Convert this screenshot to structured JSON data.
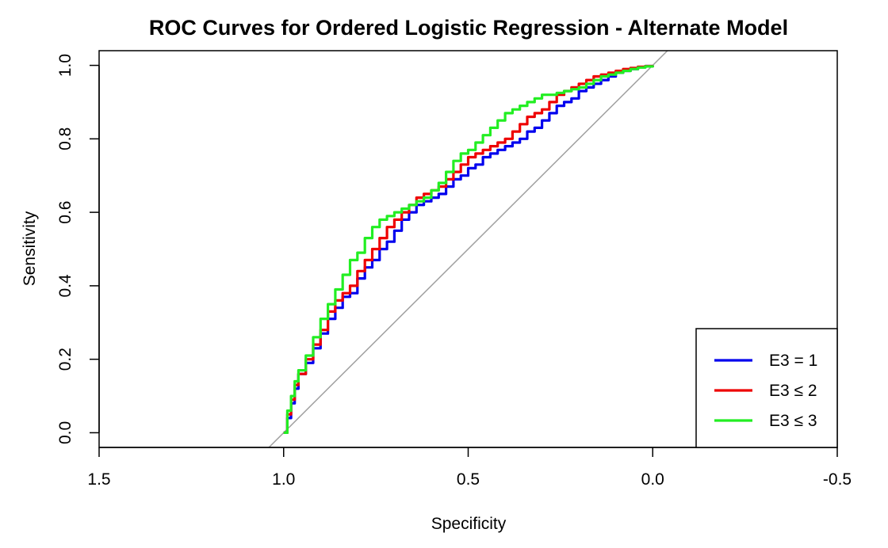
{
  "chart_data": {
    "type": "line",
    "title": "ROC Curves for Ordered Logistic Regression - Alternate Model",
    "xlabel": "Specificity",
    "ylabel": "Sensitivity",
    "xlim": [
      1.5,
      -0.5
    ],
    "ylim": [
      0,
      1
    ],
    "x_reversed": true,
    "x_ticks": [
      1.5,
      1.0,
      0.5,
      0.0,
      -0.5
    ],
    "x_tick_labels": [
      "1.5",
      "1.0",
      "0.5",
      "0.0",
      "-0.5"
    ],
    "y_ticks": [
      0.0,
      0.2,
      0.4,
      0.6,
      0.8,
      1.0
    ],
    "y_tick_labels": [
      "0.0",
      "0.2",
      "0.4",
      "0.6",
      "0.8",
      "1.0"
    ],
    "grid": false,
    "legend_position": "bottom-right",
    "reference_line": {
      "color": "#a0a0a0",
      "description": "diagonal sensitivity = 1 - specificity"
    },
    "series": [
      {
        "name": "E3 = 1",
        "color": "#0000ee",
        "points": [
          [
            1.0,
            0.0
          ],
          [
            0.99,
            0.04
          ],
          [
            0.98,
            0.08
          ],
          [
            0.97,
            0.12
          ],
          [
            0.96,
            0.16
          ],
          [
            0.94,
            0.19
          ],
          [
            0.92,
            0.23
          ],
          [
            0.9,
            0.27
          ],
          [
            0.88,
            0.31
          ],
          [
            0.86,
            0.34
          ],
          [
            0.84,
            0.37
          ],
          [
            0.82,
            0.38
          ],
          [
            0.8,
            0.42
          ],
          [
            0.78,
            0.45
          ],
          [
            0.76,
            0.47
          ],
          [
            0.74,
            0.5
          ],
          [
            0.72,
            0.52
          ],
          [
            0.7,
            0.55
          ],
          [
            0.68,
            0.58
          ],
          [
            0.66,
            0.6
          ],
          [
            0.64,
            0.62
          ],
          [
            0.62,
            0.63
          ],
          [
            0.6,
            0.64
          ],
          [
            0.58,
            0.65
          ],
          [
            0.56,
            0.67
          ],
          [
            0.54,
            0.69
          ],
          [
            0.52,
            0.7
          ],
          [
            0.5,
            0.72
          ],
          [
            0.48,
            0.73
          ],
          [
            0.46,
            0.75
          ],
          [
            0.44,
            0.76
          ],
          [
            0.42,
            0.77
          ],
          [
            0.4,
            0.78
          ],
          [
            0.38,
            0.79
          ],
          [
            0.36,
            0.8
          ],
          [
            0.34,
            0.82
          ],
          [
            0.32,
            0.83
          ],
          [
            0.3,
            0.85
          ],
          [
            0.28,
            0.87
          ],
          [
            0.26,
            0.89
          ],
          [
            0.24,
            0.9
          ],
          [
            0.22,
            0.91
          ],
          [
            0.2,
            0.93
          ],
          [
            0.18,
            0.94
          ],
          [
            0.16,
            0.95
          ],
          [
            0.14,
            0.96
          ],
          [
            0.12,
            0.97
          ],
          [
            0.1,
            0.98
          ],
          [
            0.08,
            0.985
          ],
          [
            0.06,
            0.99
          ],
          [
            0.04,
            0.995
          ],
          [
            0.02,
            0.998
          ],
          [
            0.0,
            1.0
          ]
        ]
      },
      {
        "name": "E3 ≤ 2",
        "color": "#ee0000",
        "points": [
          [
            1.0,
            0.0
          ],
          [
            0.99,
            0.05
          ],
          [
            0.98,
            0.09
          ],
          [
            0.97,
            0.13
          ],
          [
            0.96,
            0.16
          ],
          [
            0.94,
            0.2
          ],
          [
            0.92,
            0.24
          ],
          [
            0.9,
            0.28
          ],
          [
            0.88,
            0.33
          ],
          [
            0.86,
            0.36
          ],
          [
            0.84,
            0.38
          ],
          [
            0.82,
            0.4
          ],
          [
            0.8,
            0.44
          ],
          [
            0.78,
            0.47
          ],
          [
            0.76,
            0.5
          ],
          [
            0.74,
            0.53
          ],
          [
            0.72,
            0.56
          ],
          [
            0.7,
            0.58
          ],
          [
            0.68,
            0.6
          ],
          [
            0.66,
            0.62
          ],
          [
            0.64,
            0.64
          ],
          [
            0.62,
            0.65
          ],
          [
            0.6,
            0.66
          ],
          [
            0.58,
            0.67
          ],
          [
            0.56,
            0.69
          ],
          [
            0.54,
            0.71
          ],
          [
            0.52,
            0.73
          ],
          [
            0.5,
            0.75
          ],
          [
            0.48,
            0.76
          ],
          [
            0.46,
            0.77
          ],
          [
            0.44,
            0.78
          ],
          [
            0.42,
            0.79
          ],
          [
            0.4,
            0.8
          ],
          [
            0.38,
            0.82
          ],
          [
            0.36,
            0.84
          ],
          [
            0.34,
            0.86
          ],
          [
            0.32,
            0.87
          ],
          [
            0.3,
            0.88
          ],
          [
            0.28,
            0.9
          ],
          [
            0.26,
            0.92
          ],
          [
            0.24,
            0.93
          ],
          [
            0.22,
            0.94
          ],
          [
            0.2,
            0.95
          ],
          [
            0.18,
            0.96
          ],
          [
            0.16,
            0.97
          ],
          [
            0.14,
            0.975
          ],
          [
            0.12,
            0.98
          ],
          [
            0.1,
            0.985
          ],
          [
            0.08,
            0.99
          ],
          [
            0.06,
            0.993
          ],
          [
            0.04,
            0.996
          ],
          [
            0.02,
            0.998
          ],
          [
            0.0,
            1.0
          ]
        ]
      },
      {
        "name": "E3 ≤ 3",
        "color": "#22ee22",
        "points": [
          [
            1.0,
            0.0
          ],
          [
            0.99,
            0.06
          ],
          [
            0.98,
            0.1
          ],
          [
            0.97,
            0.14
          ],
          [
            0.96,
            0.17
          ],
          [
            0.94,
            0.21
          ],
          [
            0.92,
            0.26
          ],
          [
            0.9,
            0.31
          ],
          [
            0.88,
            0.35
          ],
          [
            0.86,
            0.39
          ],
          [
            0.84,
            0.43
          ],
          [
            0.82,
            0.47
          ],
          [
            0.8,
            0.49
          ],
          [
            0.78,
            0.53
          ],
          [
            0.76,
            0.56
          ],
          [
            0.74,
            0.58
          ],
          [
            0.72,
            0.59
          ],
          [
            0.7,
            0.6
          ],
          [
            0.68,
            0.61
          ],
          [
            0.66,
            0.62
          ],
          [
            0.64,
            0.63
          ],
          [
            0.62,
            0.64
          ],
          [
            0.6,
            0.66
          ],
          [
            0.58,
            0.68
          ],
          [
            0.56,
            0.71
          ],
          [
            0.54,
            0.74
          ],
          [
            0.52,
            0.76
          ],
          [
            0.5,
            0.77
          ],
          [
            0.48,
            0.79
          ],
          [
            0.46,
            0.81
          ],
          [
            0.44,
            0.83
          ],
          [
            0.42,
            0.85
          ],
          [
            0.4,
            0.87
          ],
          [
            0.38,
            0.88
          ],
          [
            0.36,
            0.89
          ],
          [
            0.34,
            0.9
          ],
          [
            0.32,
            0.91
          ],
          [
            0.3,
            0.92
          ],
          [
            0.28,
            0.92
          ],
          [
            0.26,
            0.925
          ],
          [
            0.24,
            0.93
          ],
          [
            0.22,
            0.935
          ],
          [
            0.2,
            0.94
          ],
          [
            0.18,
            0.95
          ],
          [
            0.16,
            0.96
          ],
          [
            0.14,
            0.97
          ],
          [
            0.12,
            0.975
          ],
          [
            0.1,
            0.98
          ],
          [
            0.08,
            0.985
          ],
          [
            0.06,
            0.99
          ],
          [
            0.04,
            0.994
          ],
          [
            0.02,
            0.997
          ],
          [
            0.0,
            1.0
          ]
        ]
      }
    ]
  }
}
